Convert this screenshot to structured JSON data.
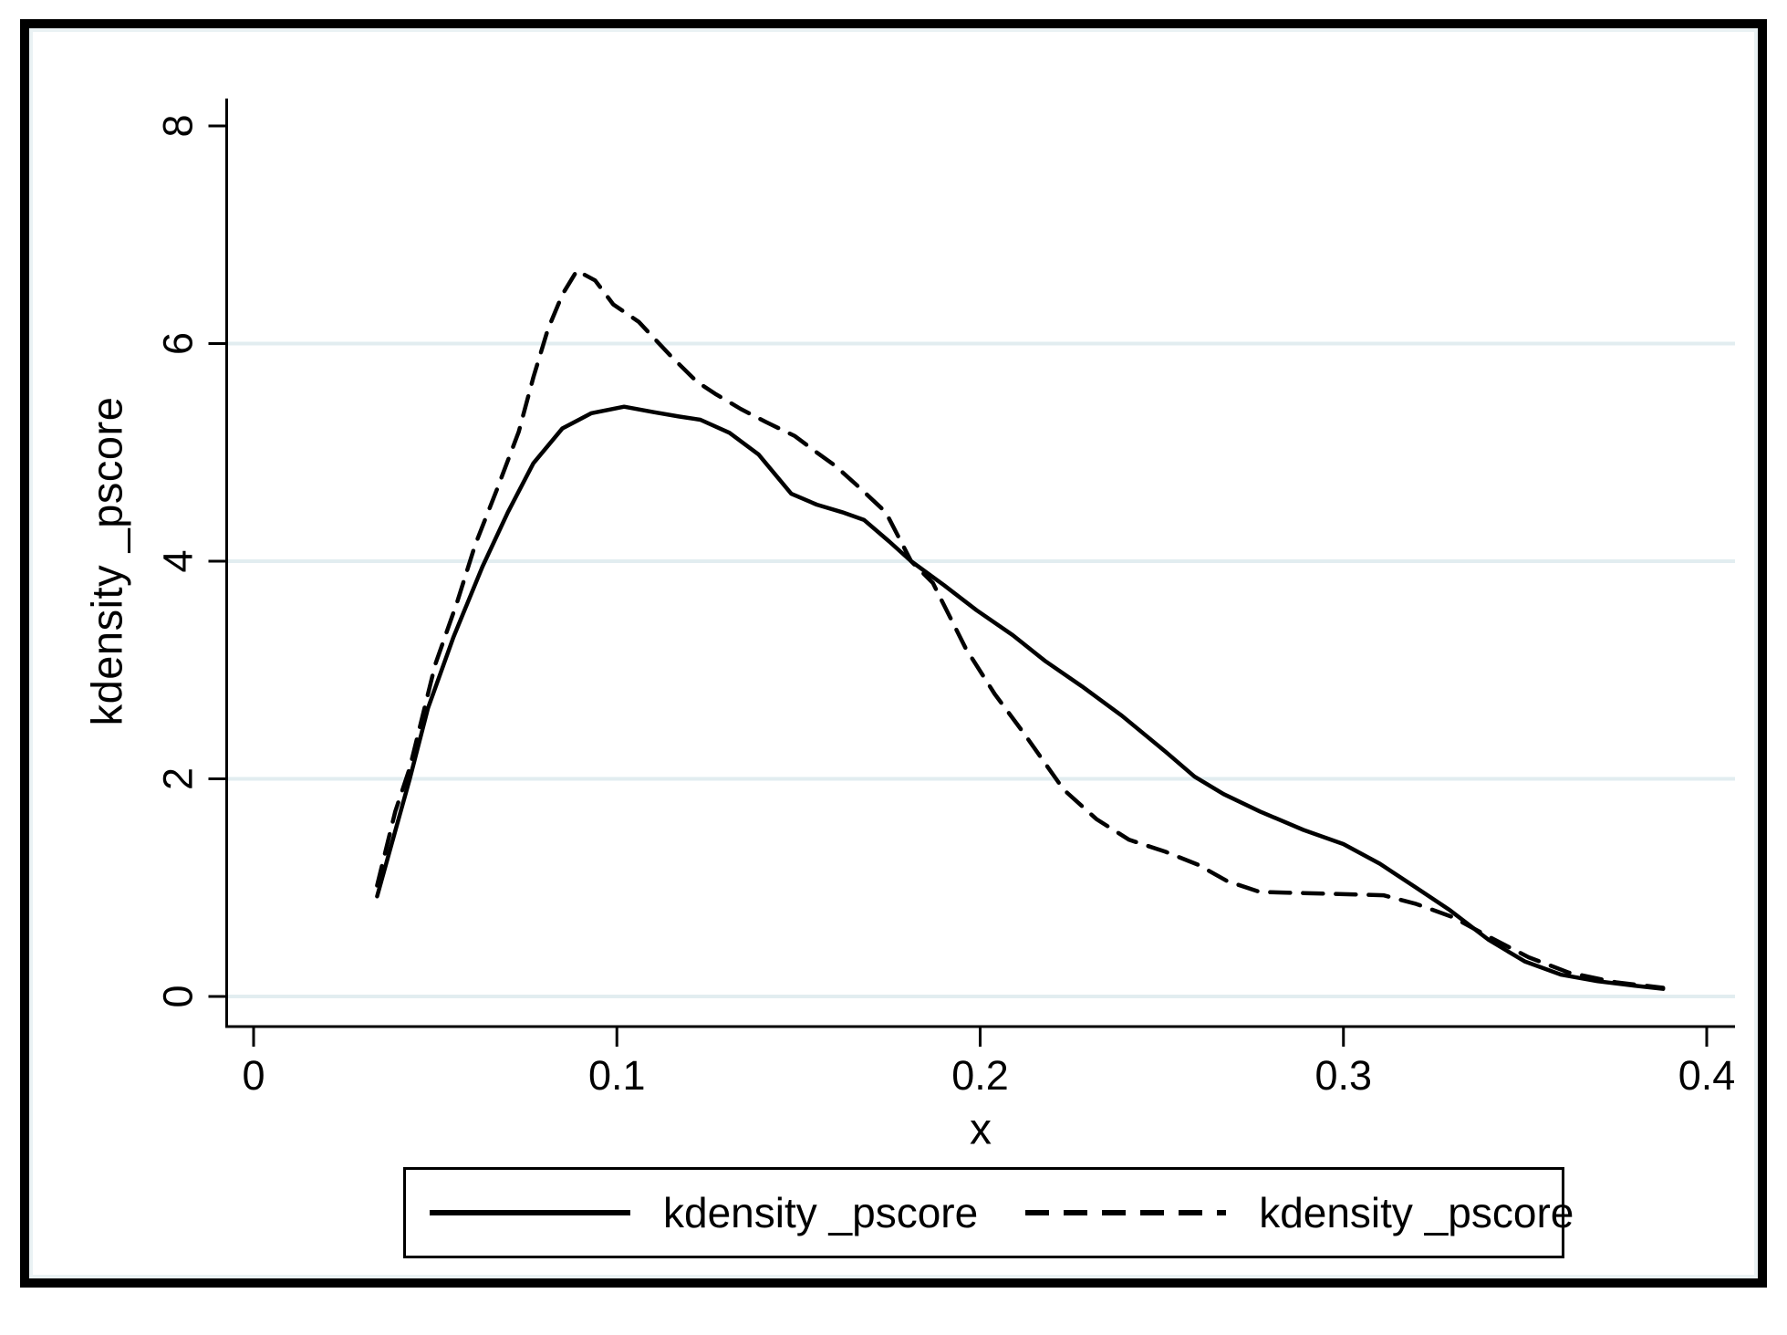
{
  "figure": {
    "y_axis_title": "kdensity _pscore",
    "x_axis_title": "x"
  },
  "legend": {
    "entries": [
      {
        "label": "kdensity _pscore",
        "style": "solid"
      },
      {
        "label": "kdensity _pscore",
        "style": "dashed"
      }
    ]
  },
  "chart_data": {
    "type": "line",
    "title": "",
    "xlabel": "x",
    "ylabel": "kdensity _pscore",
    "xlim": [
      0,
      0.42
    ],
    "ylim": [
      0,
      8.25
    ],
    "x_ticks": [
      0,
      0.1,
      0.2,
      0.3,
      0.4
    ],
    "x_tick_labels": [
      "0",
      "0.1",
      "0.2",
      "0.3",
      "0.4"
    ],
    "y_ticks": [
      0,
      2,
      4,
      6,
      8
    ],
    "y_tick_labels": [
      "0",
      "2",
      "4",
      "6",
      "8"
    ],
    "gridline_values": [
      0,
      2,
      4,
      6
    ],
    "grid_on": true,
    "grid_color": "#e2edf0",
    "axis_color": "#000000",
    "line_color": "#000000",
    "legend_position": "bottom",
    "series": [
      {
        "name": "kdensity _pscore",
        "style": "solid",
        "points": [
          [
            0.034,
            0.92
          ],
          [
            0.038,
            1.4
          ],
          [
            0.043,
            2.0
          ],
          [
            0.048,
            2.65
          ],
          [
            0.055,
            3.3
          ],
          [
            0.063,
            3.95
          ],
          [
            0.07,
            4.45
          ],
          [
            0.077,
            4.9
          ],
          [
            0.085,
            5.22
          ],
          [
            0.093,
            5.36
          ],
          [
            0.102,
            5.42
          ],
          [
            0.11,
            5.37
          ],
          [
            0.117,
            5.33
          ],
          [
            0.123,
            5.3
          ],
          [
            0.131,
            5.18
          ],
          [
            0.139,
            4.98
          ],
          [
            0.148,
            4.62
          ],
          [
            0.155,
            4.52
          ],
          [
            0.162,
            4.45
          ],
          [
            0.168,
            4.38
          ],
          [
            0.175,
            4.18
          ],
          [
            0.181,
            4.0
          ],
          [
            0.19,
            3.78
          ],
          [
            0.199,
            3.55
          ],
          [
            0.209,
            3.32
          ],
          [
            0.218,
            3.08
          ],
          [
            0.228,
            2.85
          ],
          [
            0.239,
            2.58
          ],
          [
            0.251,
            2.25
          ],
          [
            0.259,
            2.02
          ],
          [
            0.267,
            1.86
          ],
          [
            0.277,
            1.7
          ],
          [
            0.289,
            1.53
          ],
          [
            0.3,
            1.4
          ],
          [
            0.31,
            1.22
          ],
          [
            0.32,
            1.0
          ],
          [
            0.329,
            0.8
          ],
          [
            0.34,
            0.52
          ],
          [
            0.35,
            0.32
          ],
          [
            0.36,
            0.2
          ],
          [
            0.37,
            0.14
          ],
          [
            0.38,
            0.1
          ],
          [
            0.388,
            0.07
          ]
        ]
      },
      {
        "name": "kdensity _pscore",
        "style": "dashed",
        "points": [
          [
            0.034,
            1.02
          ],
          [
            0.039,
            1.7
          ],
          [
            0.043,
            2.1
          ],
          [
            0.05,
            3.05
          ],
          [
            0.056,
            3.62
          ],
          [
            0.061,
            4.15
          ],
          [
            0.067,
            4.66
          ],
          [
            0.073,
            5.19
          ],
          [
            0.077,
            5.69
          ],
          [
            0.081,
            6.13
          ],
          [
            0.085,
            6.45
          ],
          [
            0.089,
            6.67
          ],
          [
            0.094,
            6.58
          ],
          [
            0.099,
            6.36
          ],
          [
            0.106,
            6.2
          ],
          [
            0.115,
            5.88
          ],
          [
            0.122,
            5.65
          ],
          [
            0.127,
            5.54
          ],
          [
            0.134,
            5.4
          ],
          [
            0.141,
            5.28
          ],
          [
            0.149,
            5.15
          ],
          [
            0.155,
            5.0
          ],
          [
            0.16,
            4.88
          ],
          [
            0.166,
            4.7
          ],
          [
            0.174,
            4.45
          ],
          [
            0.181,
            4.0
          ],
          [
            0.187,
            3.8
          ],
          [
            0.196,
            3.2
          ],
          [
            0.204,
            2.78
          ],
          [
            0.212,
            2.42
          ],
          [
            0.223,
            1.9
          ],
          [
            0.232,
            1.63
          ],
          [
            0.241,
            1.44
          ],
          [
            0.251,
            1.33
          ],
          [
            0.26,
            1.21
          ],
          [
            0.268,
            1.06
          ],
          [
            0.277,
            0.96
          ],
          [
            0.289,
            0.95
          ],
          [
            0.3,
            0.94
          ],
          [
            0.311,
            0.93
          ],
          [
            0.32,
            0.85
          ],
          [
            0.33,
            0.73
          ],
          [
            0.34,
            0.55
          ],
          [
            0.351,
            0.36
          ],
          [
            0.362,
            0.22
          ],
          [
            0.375,
            0.13
          ],
          [
            0.388,
            0.08
          ]
        ]
      }
    ]
  }
}
